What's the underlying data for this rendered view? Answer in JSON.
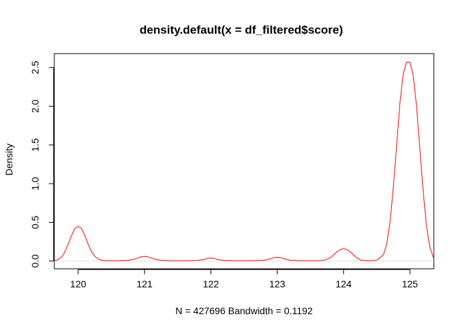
{
  "chart_data": {
    "type": "line",
    "title": "density.default(x = df_filtered$score)",
    "xlabel": "N = 427696   Bandwidth = 0.1192",
    "ylabel": "Density",
    "xlim": [
      119.64,
      125.36
    ],
    "ylim": [
      -0.1,
      2.68
    ],
    "x_ticks": [
      120,
      121,
      122,
      123,
      124,
      125
    ],
    "y_ticks": [
      0.0,
      0.5,
      1.0,
      1.5,
      2.0,
      2.5
    ],
    "x_tick_labels": [
      "120",
      "121",
      "122",
      "123",
      "124",
      "125"
    ],
    "y_tick_labels": [
      "0.0",
      "0.5",
      "1.0",
      "1.5",
      "2.0",
      "2.5"
    ],
    "grid": false,
    "series": [
      {
        "color": "#ff0000",
        "x": [
          119.64,
          119.7,
          119.76,
          119.8,
          119.85,
          119.9,
          119.95,
          120.0,
          120.05,
          120.1,
          120.15,
          120.2,
          120.25,
          120.3,
          120.36,
          120.45,
          120.6,
          120.75,
          120.85,
          120.9,
          120.95,
          121.0,
          121.05,
          121.1,
          121.15,
          121.25,
          121.4,
          121.6,
          121.8,
          121.9,
          121.95,
          122.0,
          122.05,
          122.1,
          122.2,
          122.4,
          122.6,
          122.8,
          122.9,
          122.95,
          123.0,
          123.05,
          123.1,
          123.2,
          123.4,
          123.6,
          123.7,
          123.8,
          123.85,
          123.9,
          123.95,
          124.0,
          124.05,
          124.1,
          124.15,
          124.2,
          124.25,
          124.3,
          124.4,
          124.5,
          124.6,
          124.65,
          124.7,
          124.75,
          124.8,
          124.85,
          124.9,
          124.95,
          125.0,
          125.05,
          125.1,
          125.15,
          125.2,
          125.25,
          125.3,
          125.36
        ],
        "y": [
          0.005,
          0.02,
          0.06,
          0.12,
          0.22,
          0.33,
          0.42,
          0.45,
          0.42,
          0.33,
          0.22,
          0.12,
          0.06,
          0.025,
          0.01,
          0.005,
          0.005,
          0.01,
          0.025,
          0.04,
          0.055,
          0.06,
          0.055,
          0.04,
          0.025,
          0.01,
          0.005,
          0.005,
          0.008,
          0.02,
          0.035,
          0.04,
          0.035,
          0.02,
          0.008,
          0.005,
          0.005,
          0.01,
          0.03,
          0.045,
          0.05,
          0.045,
          0.03,
          0.01,
          0.005,
          0.005,
          0.01,
          0.04,
          0.08,
          0.12,
          0.15,
          0.16,
          0.15,
          0.12,
          0.08,
          0.04,
          0.015,
          0.008,
          0.005,
          0.01,
          0.08,
          0.22,
          0.5,
          0.95,
          1.5,
          2.05,
          2.42,
          2.57,
          2.57,
          2.4,
          2.0,
          1.45,
          0.9,
          0.45,
          0.18,
          0.03
        ]
      }
    ]
  }
}
